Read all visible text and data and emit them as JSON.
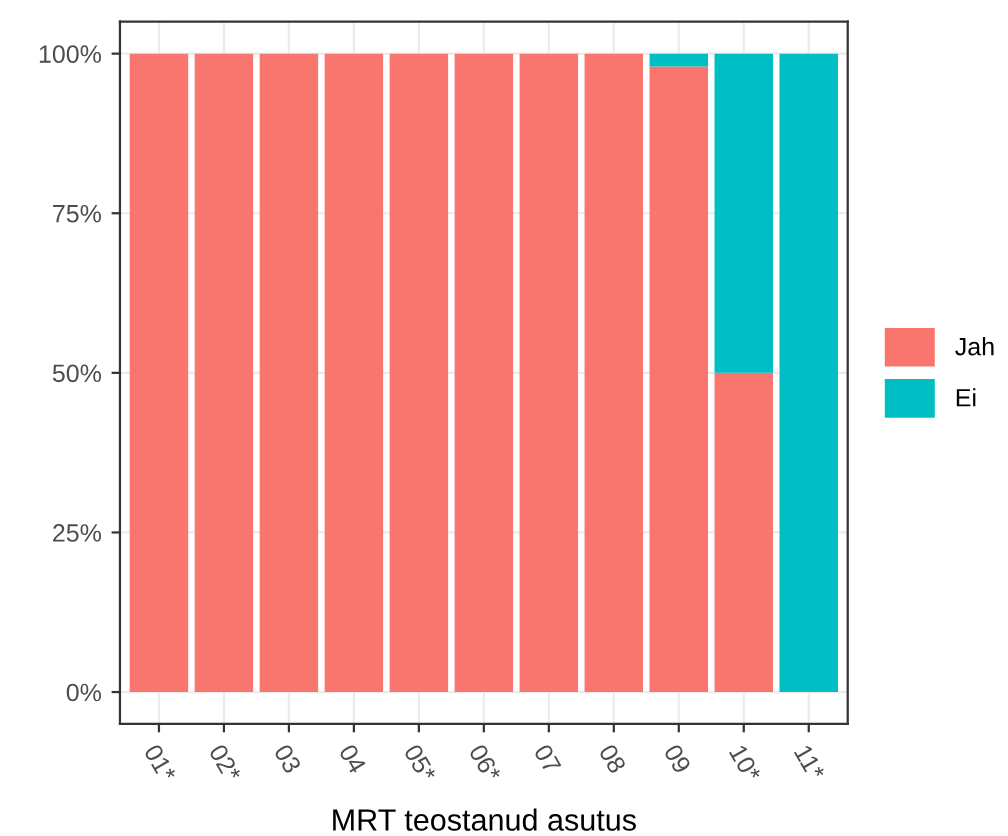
{
  "chart_data": {
    "type": "bar",
    "stacked": true,
    "xlabel": "MRT teostanud asutus",
    "categories": [
      "01*",
      "02*",
      "03",
      "04",
      "05*",
      "06*",
      "07",
      "08",
      "09",
      "10*",
      "11*"
    ],
    "series": [
      {
        "name": "Jah",
        "color": "#f8766d",
        "values": [
          100,
          100,
          100,
          100,
          100,
          100,
          100,
          100,
          98,
          50,
          0
        ]
      },
      {
        "name": "Ei",
        "color": "#00bfc4",
        "values": [
          0,
          0,
          0,
          0,
          0,
          0,
          0,
          0,
          2,
          50,
          100
        ]
      }
    ],
    "ylim": [
      -5,
      105
    ],
    "yticks": [
      {
        "value": 0,
        "label": "0%"
      },
      {
        "value": 25,
        "label": "25%"
      },
      {
        "value": 50,
        "label": "50%"
      },
      {
        "value": 75,
        "label": "75%"
      },
      {
        "value": 100,
        "label": "100%"
      }
    ],
    "grid": true,
    "legend": "right"
  }
}
